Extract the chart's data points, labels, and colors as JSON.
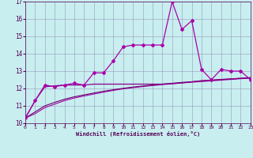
{
  "x": [
    0,
    1,
    2,
    3,
    4,
    5,
    6,
    7,
    8,
    9,
    10,
    11,
    12,
    13,
    14,
    15,
    16,
    17,
    18,
    19,
    20,
    21,
    22,
    23
  ],
  "line_spiky": [
    10.3,
    11.3,
    12.2,
    12.1,
    12.2,
    12.3,
    12.2,
    12.9,
    12.9,
    13.6,
    14.4,
    14.5,
    14.5,
    14.5,
    14.5,
    17.0,
    15.4,
    15.9,
    13.1,
    12.5,
    13.1,
    13.0,
    13.0,
    12.5
  ],
  "line_flat": [
    10.3,
    11.3,
    12.1,
    12.15,
    12.2,
    12.2,
    12.2,
    12.25,
    12.25,
    12.25,
    12.25,
    12.25,
    12.25,
    12.25,
    12.25,
    12.28,
    12.32,
    12.38,
    12.45,
    12.48,
    12.52,
    12.55,
    12.58,
    12.6
  ],
  "line_smooth1": [
    10.3,
    10.55,
    10.9,
    11.1,
    11.3,
    11.45,
    11.57,
    11.68,
    11.79,
    11.89,
    11.98,
    12.05,
    12.11,
    12.17,
    12.22,
    12.27,
    12.32,
    12.36,
    12.4,
    12.44,
    12.48,
    12.52,
    12.56,
    12.6
  ],
  "line_smooth2": [
    10.3,
    10.65,
    11.0,
    11.2,
    11.38,
    11.52,
    11.63,
    11.74,
    11.84,
    11.93,
    12.01,
    12.08,
    12.14,
    12.2,
    12.25,
    12.3,
    12.35,
    12.39,
    12.43,
    12.47,
    12.51,
    12.55,
    12.59,
    12.63
  ],
  "color_spiky": "#aa00aa",
  "color_flat": "#880088",
  "color_smooth1": "#aa00aa",
  "color_smooth2": "#660066",
  "bg_color": "#c8eef0",
  "grid_color": "#9999bb",
  "xlabel": "Windchill (Refroidissement éolien,°C)",
  "ylim": [
    10,
    17
  ],
  "xlim": [
    0,
    23
  ],
  "yticks": [
    10,
    11,
    12,
    13,
    14,
    15,
    16,
    17
  ],
  "xticks": [
    0,
    1,
    2,
    3,
    4,
    5,
    6,
    7,
    8,
    9,
    10,
    11,
    12,
    13,
    14,
    15,
    16,
    17,
    18,
    19,
    20,
    21,
    22,
    23
  ]
}
